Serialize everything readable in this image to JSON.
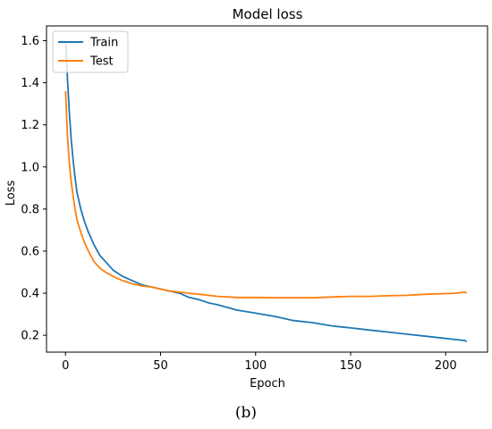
{
  "figure": {
    "caption": "(b)"
  },
  "chart_data": {
    "type": "line",
    "title": "Model loss",
    "xlabel": "Epoch",
    "ylabel": "Loss",
    "xlim": [
      -10,
      222
    ],
    "ylim": [
      0.12,
      1.67
    ],
    "xticks": [
      0,
      50,
      100,
      150,
      200
    ],
    "yticks": [
      0.2,
      0.4,
      0.6,
      0.8,
      1.0,
      1.2,
      1.4,
      1.6
    ],
    "ytick_labels": [
      "0.2",
      "0.4",
      "0.6",
      "0.8",
      "1.0",
      "1.2",
      "1.4",
      "1.6"
    ],
    "grid": false,
    "legend_position": "top-left",
    "series": [
      {
        "name": "Train",
        "color": "#1f77b4",
        "x": [
          0,
          1,
          2,
          3,
          4,
          5,
          6,
          8,
          10,
          12,
          15,
          18,
          21,
          25,
          30,
          35,
          40,
          45,
          50,
          55,
          60,
          65,
          70,
          75,
          80,
          90,
          100,
          110,
          120,
          130,
          140,
          150,
          160,
          170,
          180,
          190,
          200,
          205,
          210,
          211
        ],
        "y": [
          1.6,
          1.42,
          1.26,
          1.13,
          1.03,
          0.95,
          0.88,
          0.8,
          0.74,
          0.69,
          0.63,
          0.58,
          0.55,
          0.51,
          0.48,
          0.46,
          0.44,
          0.43,
          0.42,
          0.41,
          0.4,
          0.38,
          0.37,
          0.355,
          0.345,
          0.32,
          0.305,
          0.29,
          0.27,
          0.26,
          0.245,
          0.235,
          0.225,
          0.215,
          0.205,
          0.195,
          0.185,
          0.18,
          0.175,
          0.17
        ]
      },
      {
        "name": "Test",
        "color": "#ff7f0e",
        "x": [
          0,
          1,
          2,
          3,
          4,
          5,
          6,
          8,
          10,
          12,
          15,
          18,
          21,
          25,
          30,
          35,
          40,
          45,
          50,
          55,
          60,
          65,
          70,
          75,
          80,
          90,
          100,
          110,
          120,
          130,
          140,
          150,
          160,
          170,
          180,
          190,
          200,
          205,
          210,
          211
        ],
        "y": [
          1.36,
          1.15,
          1.02,
          0.93,
          0.86,
          0.8,
          0.75,
          0.69,
          0.64,
          0.6,
          0.55,
          0.52,
          0.5,
          0.48,
          0.46,
          0.445,
          0.435,
          0.43,
          0.42,
          0.41,
          0.405,
          0.4,
          0.395,
          0.39,
          0.385,
          0.38,
          0.38,
          0.378,
          0.378,
          0.378,
          0.382,
          0.385,
          0.385,
          0.388,
          0.39,
          0.395,
          0.398,
          0.4,
          0.405,
          0.4
        ]
      }
    ]
  }
}
